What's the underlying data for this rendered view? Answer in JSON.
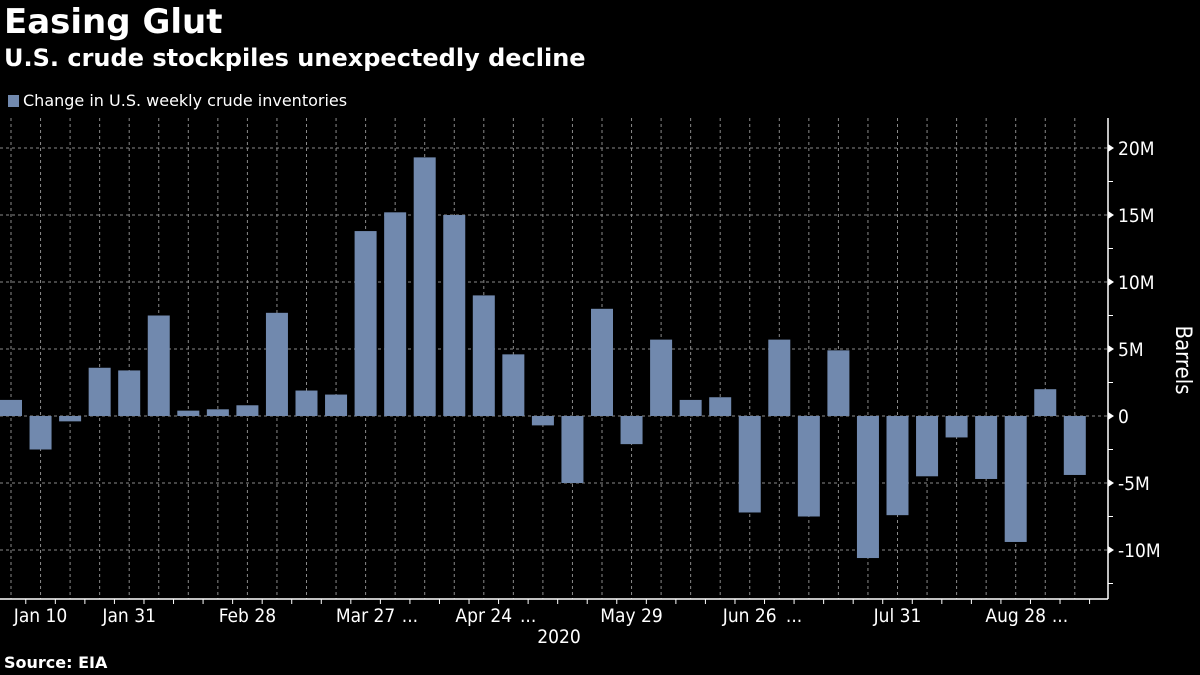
{
  "header": {
    "title": "Easing Glut",
    "subtitle": "U.S. crude stockpiles unexpectedly decline"
  },
  "footer": {
    "source": "Source: EIA"
  },
  "colors": {
    "background": "#000000",
    "bar": "#7189AE",
    "text": "#FFFFFF",
    "grid": "#8A8A8A"
  },
  "chart_data": {
    "type": "bar",
    "title": "Easing Glut",
    "subtitle": "U.S. crude stockpiles unexpectedly decline",
    "xlabel": "2020",
    "ylabel": "Barrels",
    "ylim": [
      -13500000,
      22000000
    ],
    "yticks": [
      -10000000,
      -5000000,
      0,
      5000000,
      10000000,
      15000000,
      20000000
    ],
    "ytick_labels": [
      "-10M",
      "-5M",
      "0",
      "5M",
      "10M",
      "15M",
      "20M"
    ],
    "grid": true,
    "legend_position": "top-left",
    "series": [
      {
        "name": "Change in U.S. weekly crude inventories",
        "values": [
          1.2,
          -2.5,
          -0.4,
          3.6,
          3.4,
          7.5,
          0.4,
          0.5,
          0.8,
          7.7,
          1.9,
          1.6,
          13.8,
          15.2,
          19.3,
          15.0,
          9.0,
          4.6,
          -0.7,
          -5.0,
          8.0,
          -2.1,
          5.7,
          1.2,
          1.4,
          -7.2,
          5.7,
          -7.5,
          4.9,
          -10.6,
          -7.4,
          -4.5,
          -1.6,
          -4.7,
          -9.4,
          2.0,
          -4.4
        ],
        "unit": "millions of barrels"
      }
    ],
    "xtick_labels": [
      {
        "index": 1,
        "label": "Jan 10"
      },
      {
        "index": 4,
        "label": "Jan 31"
      },
      {
        "index": 8,
        "label": "Feb 28"
      },
      {
        "index": 12,
        "label": "Mar 27"
      },
      {
        "index": 13.5,
        "label": "..."
      },
      {
        "index": 16,
        "label": "Apr 24"
      },
      {
        "index": 17.5,
        "label": "..."
      },
      {
        "index": 21,
        "label": "May 29"
      },
      {
        "index": 25,
        "label": "Jun 26"
      },
      {
        "index": 26.5,
        "label": "..."
      },
      {
        "index": 30,
        "label": "Jul 31"
      },
      {
        "index": 34,
        "label": "Aug 28"
      },
      {
        "index": 35.5,
        "label": "..."
      }
    ]
  }
}
